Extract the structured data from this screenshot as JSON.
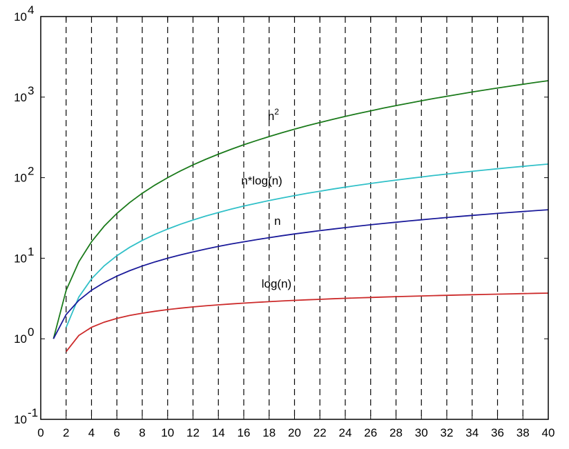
{
  "chart_data": {
    "type": "line",
    "title": "",
    "xlabel": "",
    "ylabel": "",
    "xlim": [
      0,
      40
    ],
    "ylim": [
      0.1,
      10000
    ],
    "yscale": "log",
    "x_ticks": [
      0,
      2,
      4,
      6,
      8,
      10,
      12,
      14,
      16,
      18,
      20,
      22,
      24,
      26,
      28,
      30,
      32,
      34,
      36,
      38,
      40
    ],
    "y_ticks": [
      {
        "value": 0.1,
        "base": "10",
        "exp": "-1"
      },
      {
        "value": 1,
        "base": "10",
        "exp": "0"
      },
      {
        "value": 10,
        "base": "10",
        "exp": "1"
      },
      {
        "value": 100,
        "base": "10",
        "exp": "2"
      },
      {
        "value": 1000,
        "base": "10",
        "exp": "3"
      },
      {
        "value": 10000,
        "base": "10",
        "exp": "4"
      }
    ],
    "grid": {
      "x": "dashed",
      "y": "none"
    },
    "series": [
      {
        "function": "n^2",
        "color": "#1a7a1a",
        "x_start": 1,
        "x_end": 40,
        "label": {
          "text": "n",
          "sup": "2",
          "at_x": 17.9,
          "at_y": 520
        }
      },
      {
        "function": "n*log(n)",
        "color": "#30c0c8",
        "x_start": 2,
        "x_end": 40,
        "label": {
          "text": "n*log(n)",
          "sup": "",
          "at_x": 15.8,
          "at_y": 82
        }
      },
      {
        "function": "n",
        "color": "#1a1a9a",
        "x_start": 1,
        "x_end": 40,
        "label": {
          "text": "n",
          "sup": "",
          "at_x": 18.4,
          "at_y": 26
        }
      },
      {
        "function": "log(n)",
        "color": "#cc2a2a",
        "x_start": 2,
        "x_end": 40,
        "label": {
          "text": "log(n)",
          "sup": "",
          "at_x": 17.4,
          "at_y": 4.3
        }
      }
    ]
  }
}
